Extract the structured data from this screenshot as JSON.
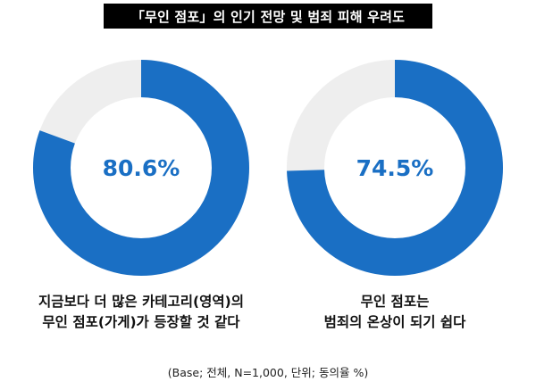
{
  "title": "「무인 점포」의 인기 전망 및 범죄 피해 우려도",
  "chart_data": [
    {
      "type": "pie",
      "variant": "donut",
      "value": 80.6,
      "value_label": "80.6%",
      "max": 100,
      "label_lines": [
        "지금보다 더 많은 카테고리(영역)의",
        "무인 점포(가게)가 등장할 것 같다"
      ],
      "colors": {
        "fill": "#1a6fc4",
        "track": "#eeeeee",
        "text": "#1a6fc4"
      }
    },
    {
      "type": "pie",
      "variant": "donut",
      "value": 74.5,
      "value_label": "74.5%",
      "max": 100,
      "label_lines": [
        "무인 점포는",
        "범죄의 온상이 되기 쉽다"
      ],
      "colors": {
        "fill": "#1a6fc4",
        "track": "#eeeeee",
        "text": "#1a6fc4"
      }
    }
  ],
  "footnote": "(Base; 전체, N=1,000, 단위; 동의율 %)"
}
